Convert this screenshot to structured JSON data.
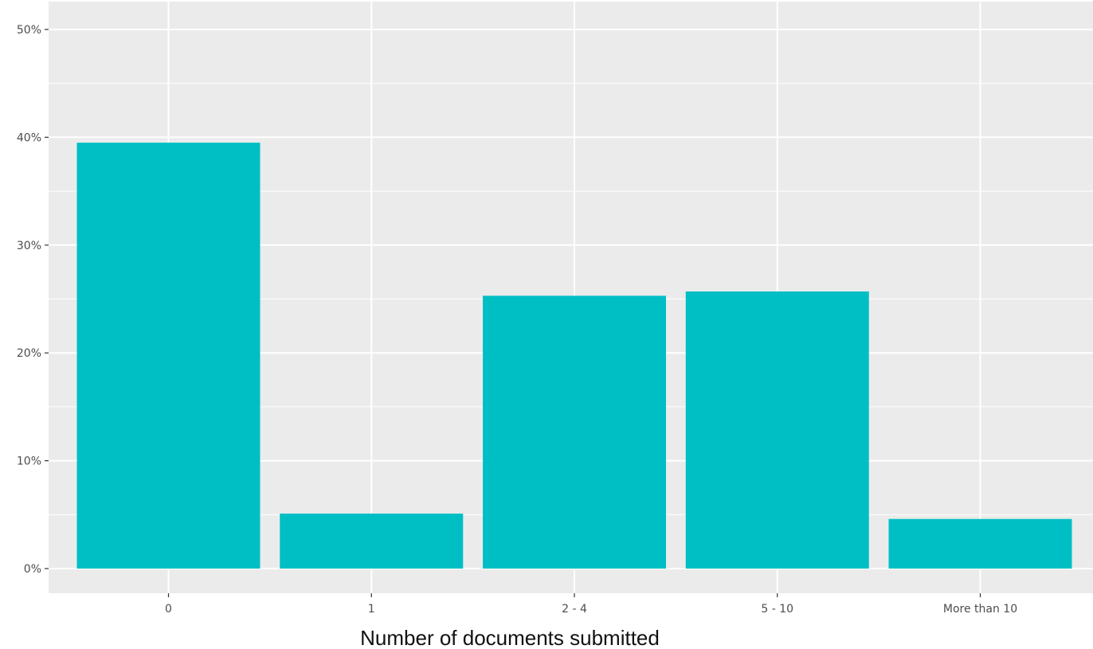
{
  "chart_data": {
    "type": "bar",
    "title": "",
    "xlabel": "Number of documents submitted",
    "ylabel": "",
    "categories": [
      "0",
      "1",
      "2 - 4",
      "5 - 10",
      "More than 10"
    ],
    "values": [
      39.5,
      5.1,
      25.3,
      25.7,
      4.6
    ],
    "ylim": [
      0,
      50
    ],
    "yticks": [
      0,
      10,
      20,
      30,
      40,
      50
    ],
    "ytick_labels": [
      "0%",
      "10%",
      "20%",
      "30%",
      "40%",
      "50%"
    ],
    "bar_color": "#00BFC4",
    "panel_color": "#EBEBEB",
    "grid": true,
    "legend": "none"
  }
}
